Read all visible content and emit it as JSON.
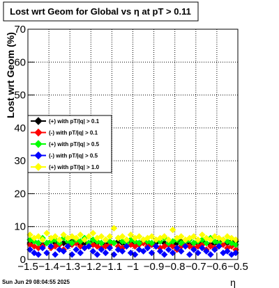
{
  "chart_data": {
    "type": "scatter",
    "title": "Lost wrt Geom for Global vs   η  at pT > 0.11",
    "y_label": "Lost wrt Geom (%)",
    "x_label": "η",
    "timestamp": "Sun Jun 29 08:04:55 2025",
    "xlim": [
      -1.5,
      -0.5
    ],
    "ylim": [
      0,
      70
    ],
    "xticks": [
      {
        "value": -1.5,
        "label": "−1.5"
      },
      {
        "value": -1.4,
        "label": "−1.4"
      },
      {
        "value": -1.3,
        "label": "−1.3"
      },
      {
        "value": -1.2,
        "label": "−1.2"
      },
      {
        "value": -1.1,
        "label": "−1.1"
      },
      {
        "value": -1,
        "label": "−1"
      },
      {
        "value": -0.9,
        "label": "−0.9"
      },
      {
        "value": -0.8,
        "label": "−0.8"
      },
      {
        "value": -0.7,
        "label": "−0.7"
      },
      {
        "value": -0.6,
        "label": "−0.6"
      },
      {
        "value": -0.5,
        "label": "−0.5"
      }
    ],
    "yticks": [
      0,
      10,
      20,
      30,
      40,
      50,
      60,
      70
    ],
    "grid": true,
    "x": [
      -1.49,
      -1.47,
      -1.45,
      -1.43,
      -1.41,
      -1.39,
      -1.37,
      -1.35,
      -1.33,
      -1.31,
      -1.29,
      -1.27,
      -1.25,
      -1.23,
      -1.21,
      -1.19,
      -1.17,
      -1.15,
      -1.13,
      -1.11,
      -1.09,
      -1.07,
      -1.05,
      -1.03,
      -1.01,
      -0.99,
      -0.97,
      -0.95,
      -0.93,
      -0.91,
      -0.89,
      -0.87,
      -0.85,
      -0.83,
      -0.81,
      -0.79,
      -0.77,
      -0.75,
      -0.73,
      -0.71,
      -0.69,
      -0.67,
      -0.65,
      -0.63,
      -0.61,
      -0.59,
      -0.57,
      -0.55,
      -0.53,
      -0.51
    ],
    "series": [
      {
        "name": "(+) with pT/|q| > 0.1",
        "color": "#000000",
        "values": [
          5,
          5.5,
          5,
          4.5,
          5,
          5.5,
          5,
          4.5,
          5,
          5,
          5.5,
          5,
          4.5,
          5,
          5,
          5.5,
          5,
          5,
          4.5,
          5,
          5,
          5.5,
          5,
          4.5,
          5,
          5,
          5,
          5.5,
          5,
          4.5,
          5,
          5.5,
          5,
          5,
          4.5,
          5,
          5.5,
          5,
          4.5,
          5,
          5,
          5.5,
          5,
          4.5,
          5,
          5.5,
          6,
          5,
          5.5,
          5.5
        ]
      },
      {
        "name": "(-) with pT/|q| > 0.1",
        "color": "#ff0000",
        "values": [
          4.5,
          4,
          3.5,
          4,
          5,
          3.5,
          4,
          4.5,
          3,
          4,
          4.5,
          5,
          4,
          3.5,
          4,
          4.5,
          4,
          3.5,
          4,
          4.5,
          5,
          4,
          3.5,
          4,
          4.5,
          4,
          4.5,
          5,
          4,
          4.5,
          4,
          3.5,
          4,
          4.5,
          4,
          3,
          4,
          4.5,
          4,
          3.5,
          4,
          4.5,
          3,
          4,
          3.5,
          4,
          4.5,
          3.5,
          4,
          3
        ]
      },
      {
        "name": "(+) with pT/|q| > 0.5",
        "color": "#00ff00",
        "values": [
          6,
          5.5,
          5,
          6.5,
          5,
          5.5,
          6,
          5,
          6.5,
          5.5,
          5,
          6,
          5.5,
          6.5,
          5,
          6,
          5.5,
          5,
          6,
          5.5,
          5,
          6.5,
          5.5,
          5,
          6,
          5.5,
          5,
          6,
          5.5,
          5,
          6,
          5.5,
          6.5,
          5,
          5.5,
          6,
          5,
          5.5,
          6,
          5,
          5.5,
          6,
          5,
          6.5,
          5.5,
          5,
          6,
          5.5,
          5,
          4.5
        ]
      },
      {
        "name": "(-) with pT/|q| > 0.5",
        "color": "#0000ff",
        "values": [
          3,
          2,
          1.5,
          3.5,
          2,
          4,
          1.5,
          3,
          2.5,
          4,
          1.5,
          3,
          2,
          3.5,
          4,
          2.5,
          1.5,
          3,
          2,
          3.5,
          1.5,
          3,
          2.5,
          4,
          2,
          1.5,
          3,
          2.5,
          3.5,
          2,
          4,
          2.5,
          1.5,
          3,
          2,
          3.5,
          2.5,
          4,
          1.5,
          3,
          2,
          3.5,
          2.5,
          1.5,
          3,
          4,
          2,
          2.5,
          1.5,
          2
        ]
      },
      {
        "name": "(+) with pT/|q| > 1.0",
        "color": "#ffff00",
        "values": [
          7.5,
          6.5,
          7,
          6,
          8,
          6.5,
          7,
          6,
          7.5,
          6.5,
          7,
          6.5,
          7.5,
          6,
          7,
          8,
          6.5,
          7,
          6,
          7,
          9.5,
          6.5,
          7,
          6,
          7.5,
          6.5,
          7,
          6,
          6.5,
          7,
          6,
          6.5,
          7,
          6,
          9,
          6.5,
          7,
          6,
          6.5,
          7,
          6,
          7.5,
          6.5,
          6,
          7,
          6.5,
          6,
          7,
          6.5,
          6
        ]
      }
    ]
  }
}
